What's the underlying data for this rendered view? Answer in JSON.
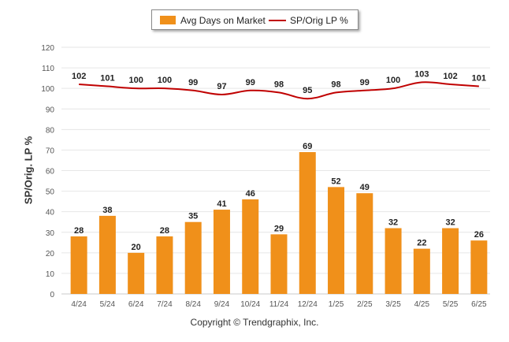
{
  "legend": {
    "bar_label": "Avg Days on Market",
    "line_label": "SP/Orig LP %"
  },
  "copyright": "Copyright © Trendgraphix, Inc.",
  "colors": {
    "bar": "#f0901a",
    "line": "#c00000",
    "grid": "#e6e6e6",
    "axis_text": "#555555"
  },
  "chart_data": {
    "type": "bar",
    "title": "",
    "xlabel": "",
    "ylabel": "SP/Orig. LP %",
    "ylim": [
      0,
      120
    ],
    "yticks": [
      0,
      10,
      20,
      30,
      40,
      50,
      60,
      70,
      80,
      90,
      100,
      110,
      120
    ],
    "grid": true,
    "legend_position": "top-center",
    "categories": [
      "4/24",
      "5/24",
      "6/24",
      "7/24",
      "8/24",
      "9/24",
      "10/24",
      "11/24",
      "12/24",
      "1/25",
      "2/25",
      "3/25",
      "4/25",
      "5/25",
      "6/25"
    ],
    "series": [
      {
        "name": "Avg Days on Market",
        "type": "bar",
        "values": [
          28,
          38,
          20,
          28,
          35,
          41,
          46,
          29,
          69,
          52,
          49,
          32,
          22,
          32,
          26
        ]
      },
      {
        "name": "SP/Orig LP %",
        "type": "line",
        "values": [
          102,
          101,
          100,
          100,
          99,
          97,
          99,
          98,
          95,
          98,
          99,
          100,
          103,
          102,
          101
        ]
      }
    ]
  }
}
